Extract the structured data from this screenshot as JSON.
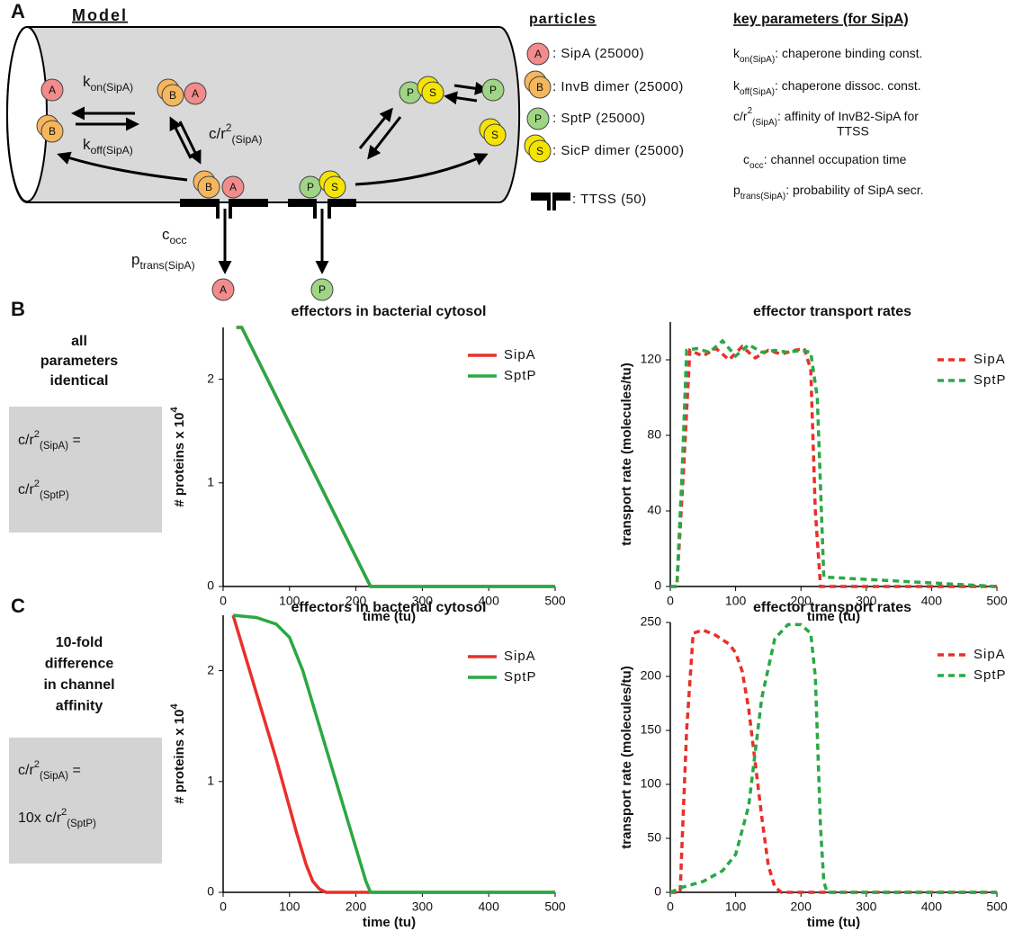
{
  "panel_a": {
    "label": "A",
    "model_title": "Model",
    "particles_title": "particles",
    "params_title": "key parameters (for SipA)",
    "circles": [
      "A",
      "B",
      "B",
      "A",
      "B",
      "A",
      "P",
      "S",
      "P",
      "S",
      "P",
      "S",
      "A",
      "P",
      "A",
      "B",
      "P",
      "S"
    ],
    "rates": [
      {
        "main": "k",
        "sub": "on(SipA)"
      },
      {
        "main": "k",
        "sub": "off(SipA)"
      },
      {
        "main": "c/r",
        "sup": "2",
        "sub": "(SipA)"
      },
      {
        "main": "c",
        "sub": "occ"
      },
      {
        "main": "p",
        "sub": "trans(SipA)"
      }
    ],
    "particles": [
      ": SipA (25000)",
      ": InvB dimer (25000)",
      ": SptP (25000)",
      ": SicP dimer (25000)",
      ": TTSS (50)"
    ],
    "params": [
      {
        "main": "k",
        "sub": "on(SipA)",
        "text": ": chaperone binding const."
      },
      {
        "main": "k",
        "sub": "off(SipA)",
        "text": ": chaperone dissoc. const."
      },
      {
        "main": "c/r",
        "sup": "2",
        "sub": "(SipA)",
        "text": ": affinity of InvB2-SipA for",
        "text2": "TTSS"
      },
      {
        "main": "c",
        "sub": "occ",
        "text": ": channel occupation time"
      },
      {
        "main": "p",
        "sub": "trans(SipA)",
        "text": ": probability of SipA secr."
      }
    ]
  },
  "panel_b": {
    "label": "B",
    "description": [
      "all",
      "parameters",
      "identical"
    ],
    "box": [
      {
        "main": "c/r",
        "sup": "2",
        "sub": "(SipA)",
        "text": " ="
      },
      {
        "main": "c/r",
        "sup": "2",
        "sub": "(SptP)"
      }
    ]
  },
  "panel_c": {
    "label": "C",
    "description": [
      "10-fold",
      "difference",
      "in channel",
      "affinity"
    ],
    "box": [
      {
        "main": "c/r",
        "sup": "2",
        "sub": "(SipA)",
        "text": " ="
      },
      {
        "main": "10x c/r",
        "sup": "2",
        "sub": "(SptP)"
      }
    ]
  },
  "chart_data": [
    {
      "type": "line",
      "title": "effectors in bacterial cytosol",
      "xlabel": "time (tu)",
      "ylabel": "# proteins x 10",
      "ylabel_sup": "4",
      "xlim": [
        0,
        500
      ],
      "xticks": [
        0,
        100,
        200,
        300,
        400,
        500
      ],
      "ylim": [
        0,
        2.5
      ],
      "yticks": [
        0,
        1,
        2
      ],
      "series": [
        {
          "name": "SipA",
          "color": "#e8302a",
          "dashed": false,
          "x": [
            20,
            28,
            222,
            500
          ],
          "values": [
            2.5,
            2.5,
            0,
            0
          ]
        },
        {
          "name": "SptP",
          "color": "#2aa845",
          "dashed": false,
          "x": [
            20,
            28,
            222,
            500
          ],
          "values": [
            2.5,
            2.5,
            0,
            0
          ]
        }
      ]
    },
    {
      "type": "line",
      "title": "effector transport rates",
      "xlabel": "time (tu)",
      "ylabel": "transport rate (molecules/tu)",
      "xlim": [
        0,
        500
      ],
      "xticks": [
        0,
        100,
        200,
        300,
        400,
        500
      ],
      "ylim": [
        0,
        140
      ],
      "yticks": [
        0,
        40,
        80,
        120
      ],
      "series": [
        {
          "name": "SipA",
          "color": "#e8302a",
          "dashed": true,
          "x": [
            0,
            10,
            20,
            30,
            50,
            70,
            90,
            110,
            130,
            150,
            170,
            190,
            205,
            215,
            222,
            230,
            500
          ],
          "values": [
            0,
            0,
            60,
            125,
            122,
            126,
            120,
            127,
            121,
            125,
            123,
            125,
            126,
            115,
            40,
            0,
            0
          ]
        },
        {
          "name": "SptP",
          "color": "#2aa845",
          "dashed": true,
          "x": [
            0,
            10,
            18,
            25,
            40,
            60,
            80,
            100,
            120,
            140,
            160,
            180,
            200,
            215,
            225,
            235,
            500
          ],
          "values": [
            0,
            0,
            60,
            125,
            126,
            124,
            130,
            122,
            128,
            124,
            125,
            124,
            125,
            124,
            100,
            5,
            0
          ]
        }
      ]
    },
    {
      "type": "line",
      "title": "effectors in bacterial cytosol",
      "xlabel": "time (tu)",
      "ylabel": "# proteins x 10",
      "ylabel_sup": "4",
      "xlim": [
        0,
        500
      ],
      "xticks": [
        0,
        100,
        200,
        300,
        400,
        500
      ],
      "ylim": [
        0,
        2.5
      ],
      "yticks": [
        0,
        1,
        2
      ],
      "series": [
        {
          "name": "SipA",
          "color": "#e8302a",
          "dashed": false,
          "x": [
            15,
            40,
            80,
            110,
            125,
            135,
            145,
            155,
            500
          ],
          "values": [
            2.5,
            2.0,
            1.2,
            0.55,
            0.25,
            0.1,
            0.03,
            0,
            0
          ]
        },
        {
          "name": "SptP",
          "color": "#2aa845",
          "dashed": false,
          "x": [
            15,
            50,
            80,
            100,
            120,
            140,
            160,
            180,
            200,
            215,
            222,
            500
          ],
          "values": [
            2.5,
            2.48,
            2.42,
            2.3,
            2.0,
            1.6,
            1.2,
            0.8,
            0.4,
            0.1,
            0,
            0
          ]
        }
      ]
    },
    {
      "type": "line",
      "title": "effector transport rates",
      "xlabel": "time (tu)",
      "ylabel": "transport rate (molecules/tu)",
      "xlim": [
        0,
        500
      ],
      "xticks": [
        0,
        100,
        200,
        300,
        400,
        500
      ],
      "ylim": [
        0,
        250
      ],
      "yticks": [
        0,
        50,
        100,
        150,
        200,
        250
      ],
      "series": [
        {
          "name": "SipA",
          "color": "#e8302a",
          "dashed": true,
          "x": [
            0,
            15,
            25,
            35,
            50,
            70,
            90,
            100,
            110,
            120,
            130,
            140,
            150,
            160,
            170,
            500
          ],
          "values": [
            0,
            0,
            150,
            240,
            243,
            238,
            230,
            222,
            205,
            170,
            120,
            70,
            25,
            5,
            0,
            0
          ]
        },
        {
          "name": "SptP",
          "color": "#2aa845",
          "dashed": true,
          "x": [
            0,
            20,
            50,
            80,
            100,
            120,
            140,
            160,
            180,
            200,
            215,
            222,
            230,
            235,
            240,
            500
          ],
          "values": [
            0,
            5,
            10,
            20,
            35,
            80,
            180,
            235,
            248,
            248,
            240,
            200,
            60,
            10,
            0,
            0
          ]
        }
      ]
    }
  ]
}
